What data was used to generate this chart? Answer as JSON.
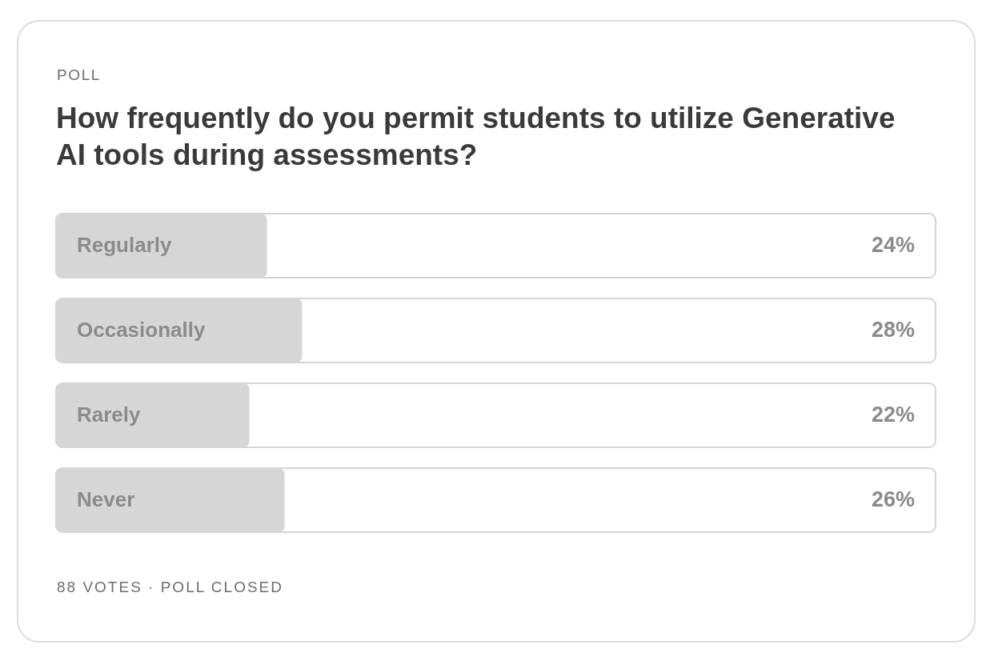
{
  "chart_data": {
    "type": "bar",
    "orientation": "horizontal",
    "title": "How frequently do you permit students to utilize Generative AI tools during assessments?",
    "annotations": [
      "POLL",
      "88 VOTES · POLL CLOSED"
    ],
    "categories": [
      "Regularly",
      "Occasionally",
      "Rarely",
      "Never"
    ],
    "values": [
      24,
      28,
      22,
      26
    ],
    "value_labels": [
      "24%",
      "28%",
      "22%",
      "26%"
    ],
    "color": "#d6d6d6",
    "xlim": [
      0,
      100
    ]
  }
}
